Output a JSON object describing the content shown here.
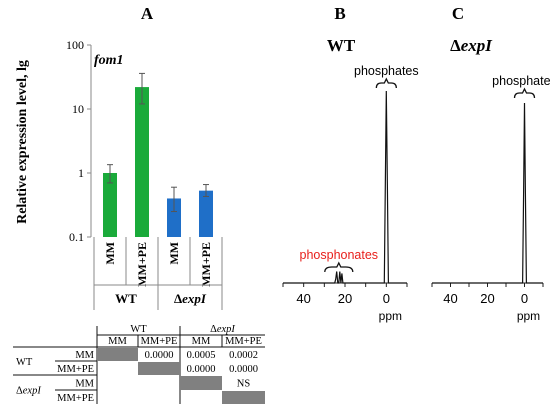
{
  "panels": {
    "a_letter": "A",
    "b_letter": "B",
    "c_letter": "C",
    "b_title": "WT",
    "c_title_delta": "Δ",
    "c_title_gene": "expI"
  },
  "colors": {
    "wt_bar": "#1aaa3a",
    "mutant_bar": "#1f6fc8",
    "phosphonates_label": "#e8201c",
    "table_shade": "#808080"
  },
  "chart_data": [
    {
      "type": "bar",
      "panel": "A",
      "ylabel": "Relative expression level, lg",
      "yscale": "log",
      "ylim": [
        0.1,
        100
      ],
      "yticks": [
        0.1,
        1,
        10,
        100
      ],
      "ytick_labels": [
        "0.1",
        "1",
        "10",
        "100"
      ],
      "gene_label": "fom1",
      "categories": [
        "MM",
        "MM+PE",
        "MM",
        "MM+PE"
      ],
      "groups": [
        {
          "label": "WT",
          "delta": "",
          "gene": "",
          "range": [
            0,
            1
          ]
        },
        {
          "label": "",
          "delta": "Δ",
          "gene": "expI",
          "range": [
            2,
            3
          ]
        }
      ],
      "values": [
        1.0,
        22.0,
        0.4,
        0.53
      ],
      "errors_upper": [
        1.35,
        36.0,
        0.6,
        0.66
      ],
      "errors_lower": [
        0.7,
        12.0,
        0.25,
        0.43
      ],
      "bar_colors": [
        "#1aaa3a",
        "#1aaa3a",
        "#1f6fc8",
        "#1f6fc8"
      ],
      "grid": false
    },
    {
      "type": "line",
      "panel": "B",
      "title": "WT",
      "xlabel": "ppm",
      "xlim": [
        50,
        -10
      ],
      "xticks": [
        40,
        20,
        0
      ],
      "x": [
        50,
        26,
        25,
        24.5,
        24,
        23.5,
        23,
        22.5,
        22,
        21.5,
        21,
        3,
        1,
        0.5,
        0,
        -0.5,
        -1,
        -3,
        -10
      ],
      "y": [
        0,
        0,
        0,
        0.02,
        0.06,
        0.0,
        0.0,
        0.06,
        0.0,
        0.05,
        0,
        0,
        0,
        0.5,
        1.0,
        0.5,
        0,
        0,
        0
      ],
      "annotations": [
        {
          "text": "phosphonates",
          "at": 23,
          "color": "#e8201c"
        },
        {
          "text": "phosphates",
          "at": 0,
          "color": "#000000"
        }
      ]
    },
    {
      "type": "line",
      "panel": "C",
      "title": "ΔexpI",
      "xlabel": "ppm",
      "xlim": [
        50,
        -10
      ],
      "xticks": [
        40,
        20,
        0
      ],
      "x": [
        50,
        3,
        1,
        0.5,
        0,
        -0.5,
        -1,
        -3,
        -10
      ],
      "y": [
        0,
        0,
        0,
        0.5,
        1.0,
        0.5,
        0,
        0,
        0
      ],
      "annotations": [
        {
          "text": "phosphates",
          "at": 0,
          "color": "#000000"
        }
      ]
    }
  ],
  "table": {
    "col_groups": [
      {
        "label": "WT",
        "delta": "",
        "gene": ""
      },
      {
        "label": "",
        "delta": "Δ",
        "gene": "expI"
      }
    ],
    "col_heads": [
      "MM",
      "MM+PE",
      "MM",
      "MM+PE"
    ],
    "row_groups": [
      {
        "label": "WT",
        "delta": "",
        "gene": ""
      },
      {
        "label": "",
        "delta": "Δ",
        "gene": "expI"
      }
    ],
    "row_heads": [
      "MM",
      "MM+PE",
      "MM",
      "MM+PE"
    ],
    "rows": [
      [
        "",
        "0.0000",
        "0.0005",
        "0.0002"
      ],
      [
        "",
        "",
        "0.0000",
        "0.0000"
      ],
      [
        "",
        "",
        "",
        "NS"
      ],
      [
        "",
        "",
        "",
        ""
      ]
    ]
  }
}
